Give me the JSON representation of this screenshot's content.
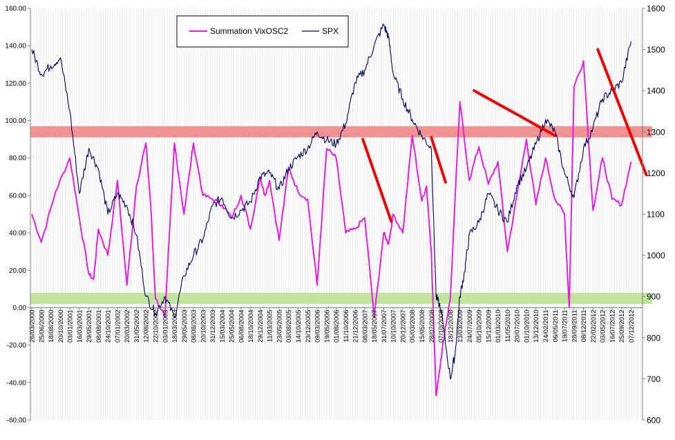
{
  "chart_data": {
    "type": "line",
    "title": "",
    "legend": {
      "placement": "top-center",
      "entries": [
        "Summation VixOSC2",
        "SPX"
      ]
    },
    "grid": "vertical",
    "y_left": {
      "min": -60,
      "max": 160,
      "ticks": [
        -60,
        -40,
        -20,
        0,
        20,
        40,
        60,
        80,
        100,
        120,
        140,
        160
      ],
      "tick_labels": [
        "-60.00",
        "-40.00",
        "-20.00",
        "0.00",
        "20.00",
        "40.00",
        "60.00",
        "80.00",
        "100.00",
        "120.00",
        "140.00",
        "160.00"
      ]
    },
    "y_right": {
      "min": 600,
      "max": 1600,
      "ticks": [
        600,
        700,
        800,
        900,
        1000,
        1100,
        1200,
        1300,
        1400,
        1500,
        1600
      ],
      "tick_labels": [
        "600",
        "700",
        "800",
        "900",
        "1000",
        "1100",
        "1200",
        "1300",
        "1400",
        "1500",
        "1600"
      ]
    },
    "x_tick_labels": [
      "26/03/2000",
      "25/06/2000",
      "18/08/2000",
      "20/10/2000",
      "03/01/2001",
      "16/03/2001",
      "29/05/2001",
      "08/08/2001",
      "24/10/2001",
      "07/01/2002",
      "20/03/2002",
      "31/05/2002",
      "12/08/2002",
      "22/10/2002",
      "03/01/2003",
      "18/03/2003",
      "29/05/2003",
      "08/08/2003",
      "20/10/2003",
      "31/12/2003",
      "15/03/2004",
      "25/05/2004",
      "06/08/2004",
      "18/10/2004",
      "29/12/2004",
      "11/03/2005",
      "23/05/2005",
      "03/08/2005",
      "14/10/2005",
      "23/12/2005",
      "09/03/2006",
      "19/05/2006",
      "01/08/2006",
      "11/10/2006",
      "21/12/2006",
      "08/03/2007",
      "18/05/2007",
      "31/07/2007",
      "10/10/2007",
      "20/12/2007",
      "05/03/2008",
      "15/05/2008",
      "28/07/2008",
      "07/10/2008",
      "18/12/2008",
      "13/03/2009",
      "24/07/2009",
      "05/10/2009",
      "15/12/2009",
      "01/03/2010",
      "11/05/2010",
      "20/07/2010",
      "01/10/2010",
      "13/12/2010",
      "24/02/2011",
      "06/05/2011",
      "19/07/2011",
      "28/09/2011",
      "08/12/2011",
      "22/02/2012",
      "03/05/2012",
      "16/07/2012",
      "25/09/2012",
      "07/12/2012"
    ],
    "series": [
      {
        "name": "Summation VixOSC2",
        "axis": "left",
        "color": "#e020e0",
        "x": [
          0,
          1,
          2.5,
          4,
          5,
          6,
          6.5,
          7,
          8,
          9,
          10,
          11,
          12,
          12.5,
          13,
          14,
          15,
          16,
          17,
          18,
          19,
          20,
          21,
          22,
          23,
          24,
          24.5,
          25,
          26,
          27,
          28,
          29,
          30,
          31,
          32,
          33,
          34,
          35,
          36,
          37,
          37.5,
          38,
          39,
          40,
          41,
          41.5,
          42,
          42.5,
          43,
          43.5,
          44,
          45,
          46,
          47,
          48,
          49,
          50,
          51,
          52,
          53,
          54,
          55,
          56,
          56.5,
          57,
          58,
          59,
          60,
          61,
          62,
          63
        ],
        "values": [
          50,
          35,
          62,
          80,
          48,
          18,
          15,
          42,
          28,
          68,
          12,
          65,
          88,
          55,
          5,
          -5,
          88,
          50,
          88,
          60,
          58,
          55,
          48,
          60,
          42,
          70,
          60,
          68,
          36,
          75,
          62,
          58,
          12,
          85,
          80,
          40,
          42,
          48,
          -5,
          40,
          34,
          50,
          40,
          92,
          57,
          65,
          30,
          -47,
          -28,
          -10,
          5,
          110,
          68,
          86,
          66,
          78,
          30,
          60,
          90,
          55,
          80,
          58,
          50,
          0,
          118,
          132,
          52,
          80,
          58,
          55,
          78
        ]
      },
      {
        "name": "SPX",
        "axis": "right",
        "color": "#000060",
        "x": [
          0,
          1,
          2,
          3,
          4,
          5,
          6,
          7,
          8,
          9,
          10,
          11,
          12,
          13,
          14,
          15,
          16,
          17,
          18,
          19,
          20,
          21,
          22,
          23,
          24,
          25,
          26,
          27,
          28,
          29,
          30,
          31,
          32,
          33,
          34,
          35,
          36,
          37,
          37.5,
          38,
          39,
          40,
          41,
          42,
          42.5,
          43,
          44,
          44.5,
          45,
          45.5,
          46,
          47,
          48,
          49,
          50,
          51,
          52,
          53,
          54,
          55,
          56,
          57,
          58,
          59,
          60,
          61,
          62,
          63
        ],
        "values": [
          1500,
          1440,
          1460,
          1480,
          1350,
          1150,
          1260,
          1210,
          1100,
          1150,
          1120,
          1050,
          900,
          860,
          900,
          850,
          950,
          1000,
          1040,
          1120,
          1140,
          1090,
          1110,
          1130,
          1190,
          1200,
          1160,
          1210,
          1240,
          1260,
          1300,
          1280,
          1270,
          1320,
          1420,
          1450,
          1510,
          1560,
          1530,
          1440,
          1380,
          1330,
          1290,
          1260,
          900,
          870,
          700,
          760,
          900,
          960,
          1050,
          1080,
          1150,
          1110,
          1080,
          1170,
          1210,
          1270,
          1330,
          1300,
          1200,
          1140,
          1260,
          1310,
          1380,
          1400,
          1420,
          1520
        ]
      }
    ],
    "bands": [
      {
        "axis": "left",
        "from": 91,
        "to": 97,
        "color": "#f08080"
      },
      {
        "axis": "left",
        "from": 2,
        "to": 8,
        "color": "#b8e08c"
      }
    ],
    "trendlines": [
      {
        "axis": "left",
        "from": [
          34.8,
          90
        ],
        "to": [
          37.8,
          46
        ],
        "color": "#ee0000"
      },
      {
        "axis": "left",
        "from": [
          42,
          91
        ],
        "to": [
          43.5,
          67
        ],
        "color": "#ee0000"
      },
      {
        "axis": "left",
        "from": [
          46.5,
          116
        ],
        "to": [
          55,
          92
        ],
        "color": "#ee0000"
      },
      {
        "axis": "left",
        "from": [
          59.5,
          138
        ],
        "to": [
          64.6,
          71
        ],
        "color": "#ee0000"
      }
    ]
  }
}
